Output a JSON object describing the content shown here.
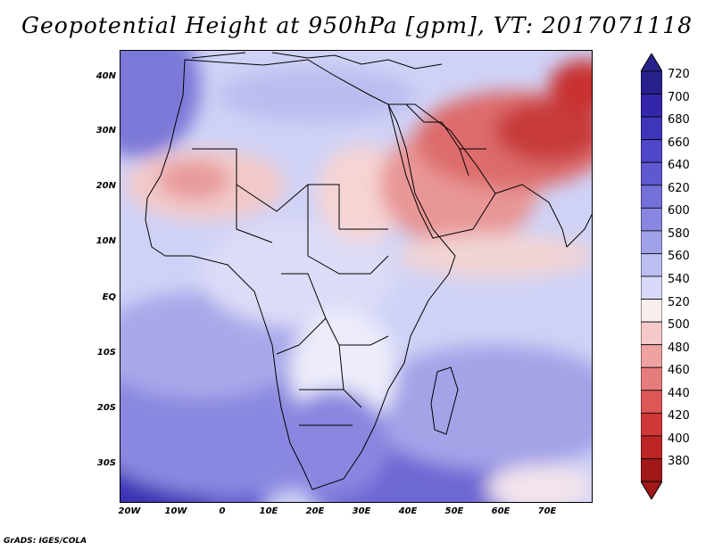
{
  "title": "Geopotential Height at 950hPa [gpm], VT: 2017071118",
  "credit": "GrADS: IGES/COLA",
  "lat_labels": [
    "40N",
    "30N",
    "20N",
    "10N",
    "EQ",
    "10S",
    "20S",
    "30S"
  ],
  "lon_labels": [
    "20W",
    "10W",
    "0",
    "10E",
    "20E",
    "30E",
    "40E",
    "50E",
    "60E",
    "70E"
  ],
  "colorbar": {
    "labels": [
      "720",
      "700",
      "680",
      "660",
      "640",
      "620",
      "600",
      "580",
      "560",
      "540",
      "520",
      "500",
      "480",
      "460",
      "440",
      "420",
      "400",
      "380"
    ],
    "colors_top_to_bottom": [
      "#28208c",
      "#3326a8",
      "#3f35bb",
      "#4f46c8",
      "#5f58d0",
      "#7370d8",
      "#8886e0",
      "#a1a1e8",
      "#bcbdf0",
      "#d8d9f8",
      "#f8eeee",
      "#f5c9c9",
      "#eea2a2",
      "#e67c7c",
      "#dd5757",
      "#d03838",
      "#bd2424",
      "#a01818"
    ]
  },
  "map": {
    "region": "Africa and Middle East",
    "high_color": "#4b45c9",
    "low_color": "#c83030"
  }
}
